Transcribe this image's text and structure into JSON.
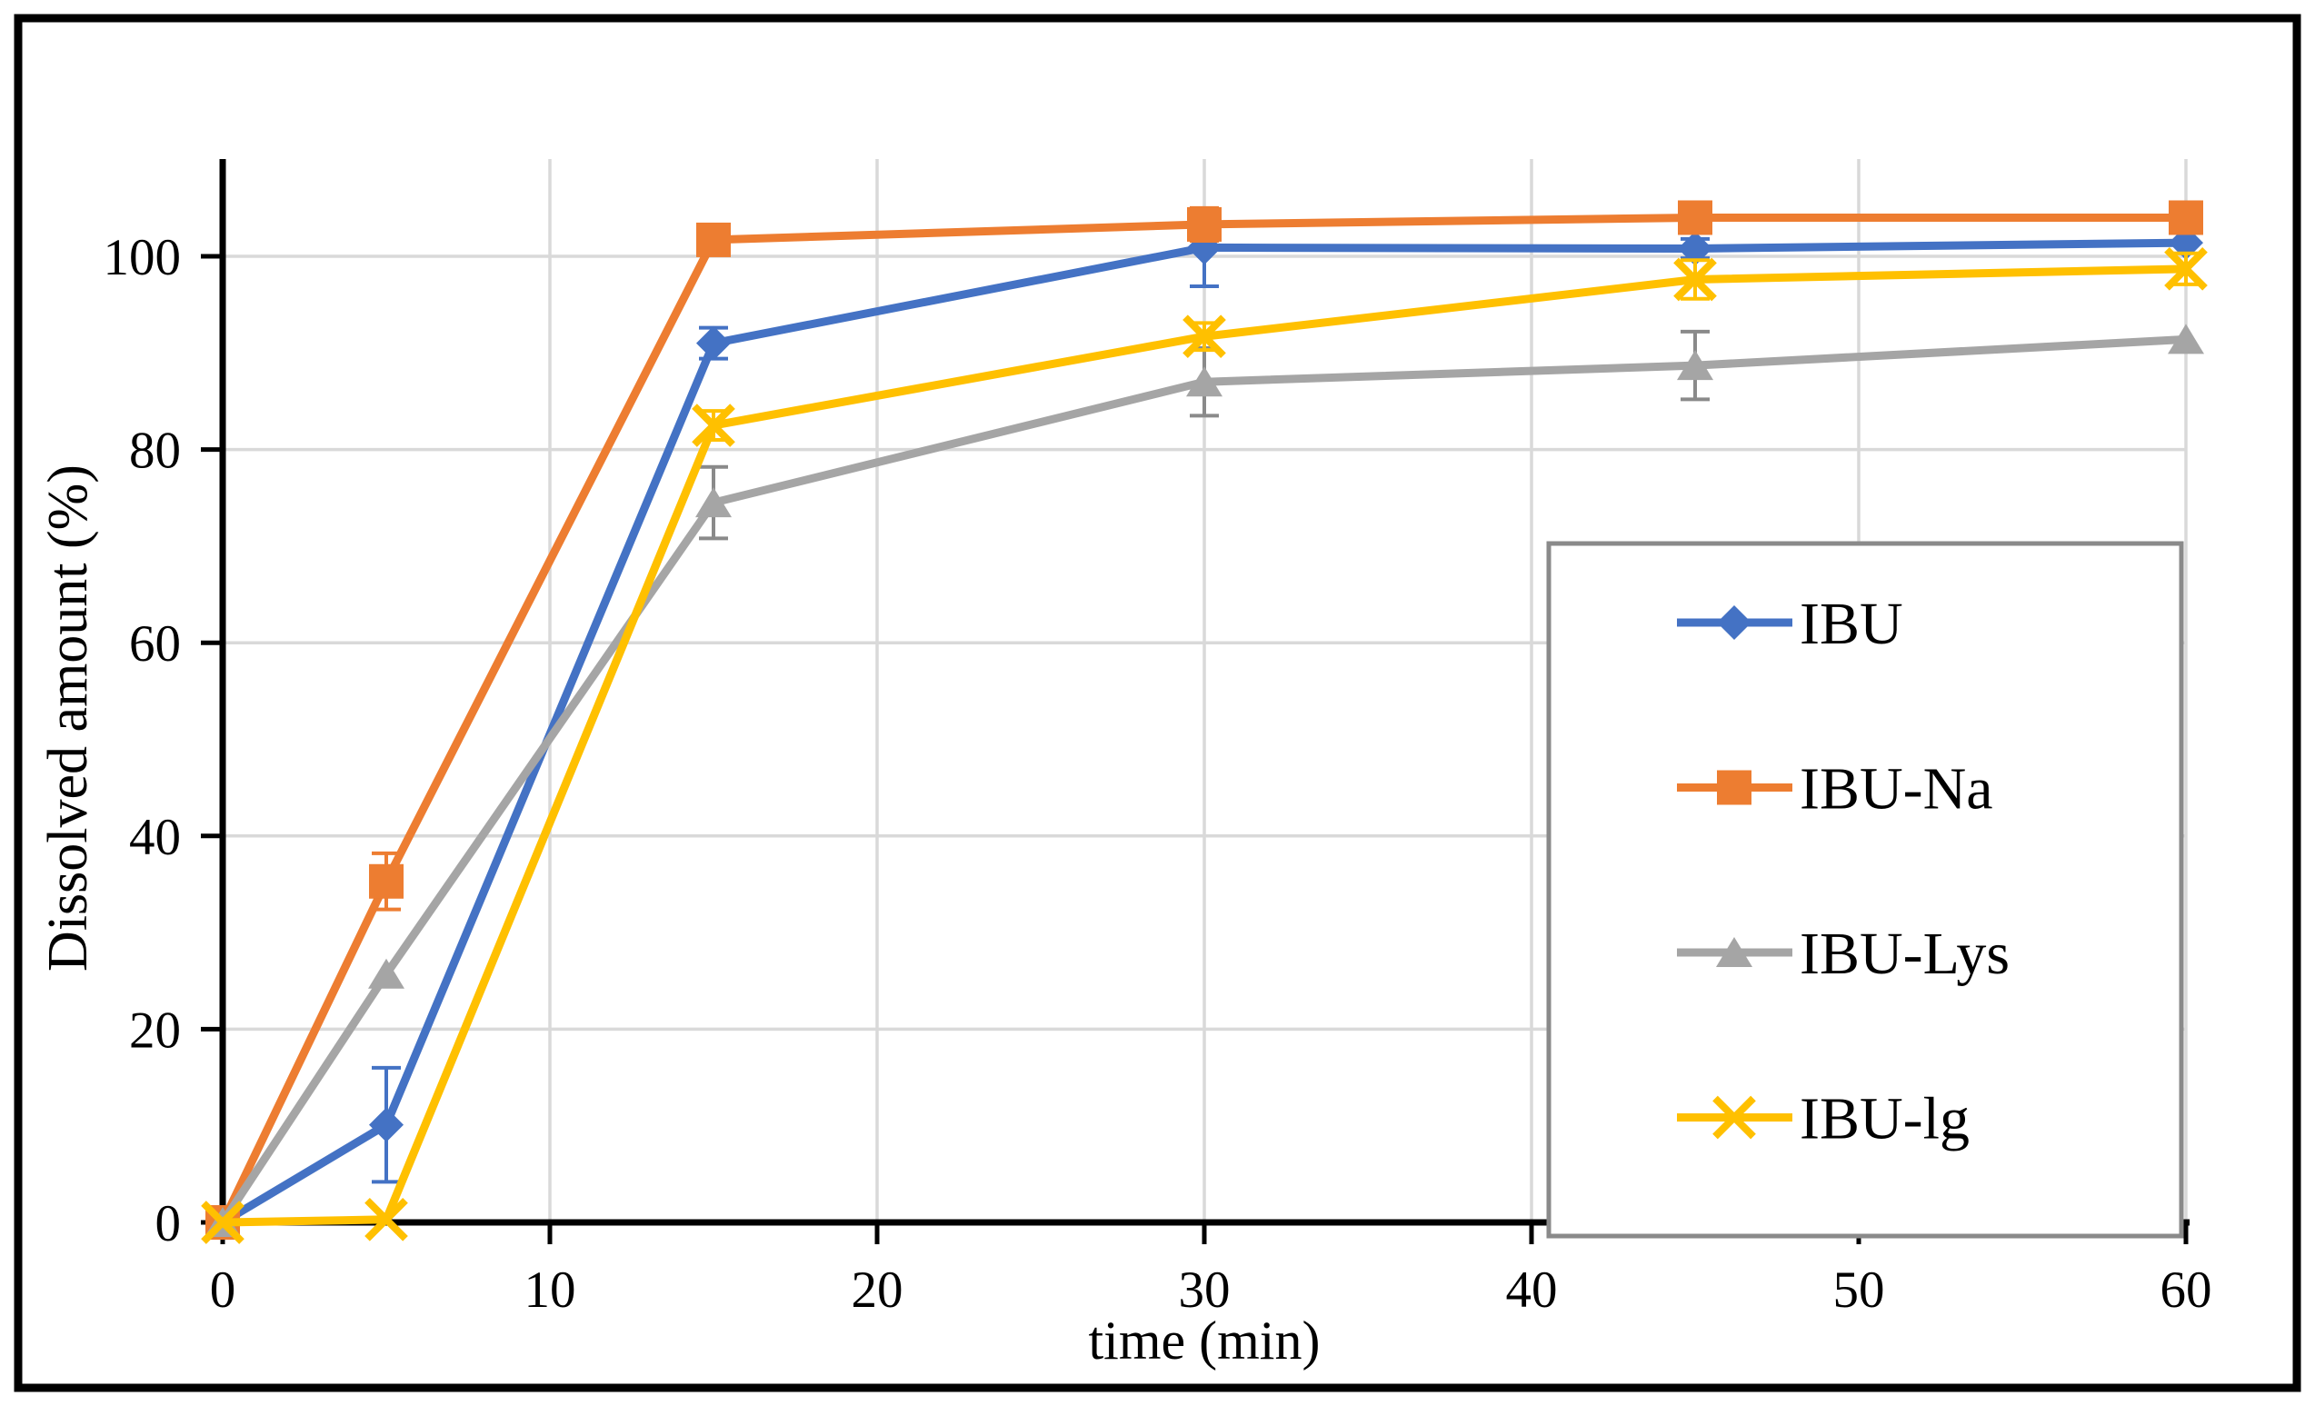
{
  "figure": {
    "background": "#ffffff",
    "border_color": "#000000",
    "plot_background": "#ffffff"
  },
  "chart_data": {
    "type": "line",
    "title": "",
    "xlabel": "time (min)",
    "ylabel": "Dissolved amount (%)",
    "x": [
      0,
      5,
      15,
      30,
      45,
      60
    ],
    "xlim": [
      0,
      60
    ],
    "ylim": [
      0,
      110
    ],
    "x_ticks": [
      0,
      10,
      20,
      30,
      40,
      50,
      60
    ],
    "y_ticks": [
      0,
      20,
      40,
      60,
      80,
      100
    ],
    "grid": true,
    "gridline_color": "#d9d9d9",
    "axis_color": "#000000",
    "legend_position": "inside-right-box",
    "legend_border_color": "#8a8a8a",
    "series": [
      {
        "name": "IBU",
        "color": "#4472C4",
        "marker": "diamond",
        "values": [
          0,
          10.1,
          91.0,
          100.9,
          100.8,
          101.4
        ],
        "errors": [
          0,
          5.9,
          1.6,
          4.0,
          1.0,
          0
        ]
      },
      {
        "name": "IBU-Na",
        "color": "#ED7D31",
        "marker": "square",
        "values": [
          0,
          35.3,
          101.7,
          103.3,
          104.0,
          104.0
        ],
        "errors": [
          0,
          2.9,
          0,
          1.7,
          0.8,
          1.5
        ]
      },
      {
        "name": "IBU-Lys",
        "color": "#A5A5A5",
        "marker": "triangle",
        "error_color": "#8a8a8a",
        "values": [
          0,
          25.7,
          74.5,
          87.0,
          88.7,
          91.4
        ],
        "errors": [
          0,
          0,
          3.7,
          3.5,
          3.5,
          0
        ]
      },
      {
        "name": "IBU-lg",
        "color": "#FFC000",
        "marker": "x",
        "values": [
          0,
          0.3,
          82.5,
          91.7,
          97.6,
          98.7
        ],
        "errors": [
          0,
          0,
          1.5,
          1.4,
          2.0,
          1.6
        ]
      }
    ]
  }
}
